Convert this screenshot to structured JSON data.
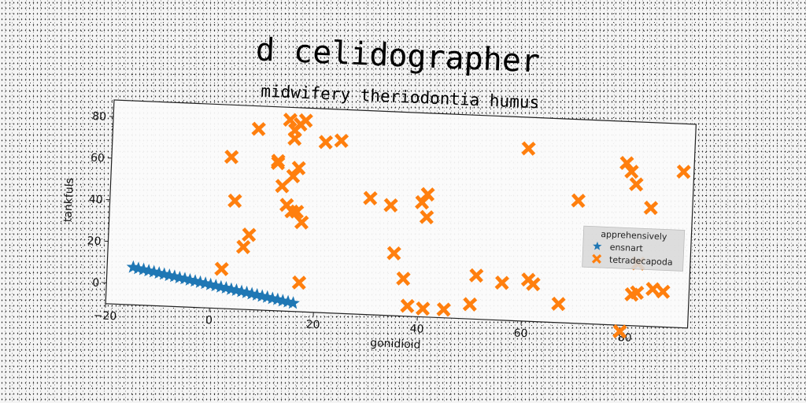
{
  "chart_data": {
    "type": "scatter",
    "title": "d celidographer",
    "subtitle": "midwifery theriodontia humus",
    "xlabel": "gonidioid",
    "ylabel": "tankfuls",
    "xlim": [
      -20,
      92
    ],
    "ylim": [
      -10,
      88
    ],
    "xticks": [
      -20,
      0,
      20,
      40,
      60,
      80
    ],
    "yticks": [
      0,
      20,
      40,
      60,
      80
    ],
    "grid": false,
    "legend": {
      "title": "apprehensively",
      "placement": "right"
    },
    "series": [
      {
        "name": "ensnart",
        "marker": "star",
        "color": "#1f77b4",
        "x": [
          -15,
          -14,
          -13,
          -12,
          -11,
          -10,
          -9,
          -8,
          -7,
          -6,
          -5,
          -4,
          -3,
          -2,
          -1,
          0,
          1,
          2,
          3,
          4,
          5,
          6,
          7,
          8,
          9,
          10,
          11,
          12,
          13,
          14,
          15,
          16
        ],
        "y": [
          8.0,
          7.5,
          7.1,
          6.6,
          6.2,
          5.7,
          5.3,
          4.8,
          4.4,
          3.9,
          3.5,
          3.0,
          2.6,
          2.1,
          1.7,
          1.2,
          0.8,
          0.3,
          -0.1,
          -0.6,
          -1.0,
          -1.5,
          -1.9,
          -2.4,
          -2.8,
          -3.3,
          -3.7,
          -4.2,
          -4.6,
          -5.1,
          -5.5,
          -6.0
        ]
      },
      {
        "name": "tetradecapoda",
        "marker": "x",
        "color": "#ff7f0e",
        "x": [
          2,
          3,
          4,
          6,
          7,
          8,
          12,
          12,
          13,
          14,
          14,
          15,
          15,
          15,
          15,
          16,
          16,
          16,
          17,
          17,
          17,
          21,
          24,
          30,
          34,
          35,
          37,
          38,
          40,
          41,
          41,
          41,
          45,
          50,
          51,
          56,
          60,
          61,
          62,
          67,
          70,
          79,
          79,
          80,
          81,
          81,
          82,
          82,
          84,
          85,
          87,
          90
        ],
        "y": [
          9,
          63,
          42,
          20,
          26,
          77,
          62,
          61,
          50,
          82,
          41,
          77,
          38,
          73,
          55,
          80,
          59,
          38,
          82,
          4,
          33,
          72,
          73,
          46,
          43,
          20,
          8,
          -5,
          45,
          49,
          38,
          -6,
          -6,
          -3,
          11,
          8,
          73,
          10,
          8,
          -1,
          49,
          68,
          -13,
          64,
          58,
          5,
          20,
          6,
          47,
          8,
          7,
          65
        ]
      }
    ]
  }
}
